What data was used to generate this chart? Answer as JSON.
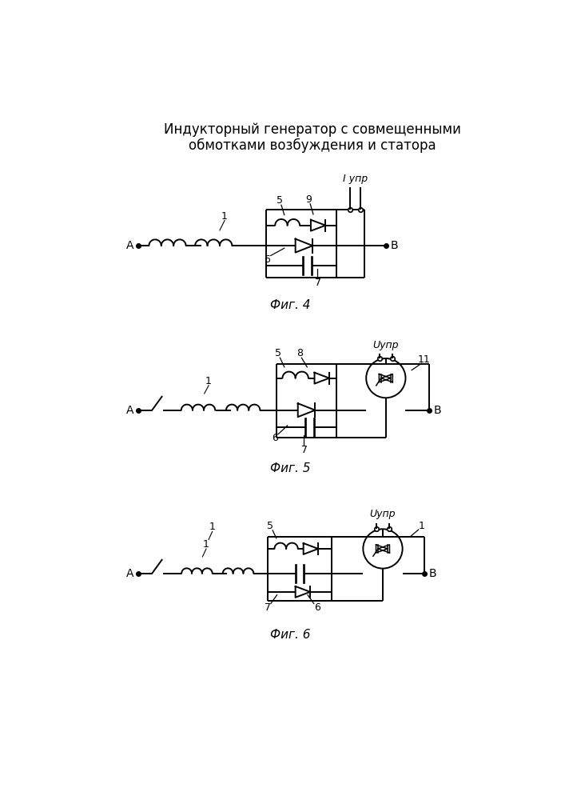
{
  "title_line1": "Индукторный генератор с совмещенными",
  "title_line2": "обмотками возбуждения и статора",
  "fig4_label": "Фиг. 4",
  "fig5_label": "Фиг. 5",
  "fig6_label": "Фиг. 6",
  "line_color": "#000000",
  "bg_color": "#ffffff",
  "lw": 1.4
}
